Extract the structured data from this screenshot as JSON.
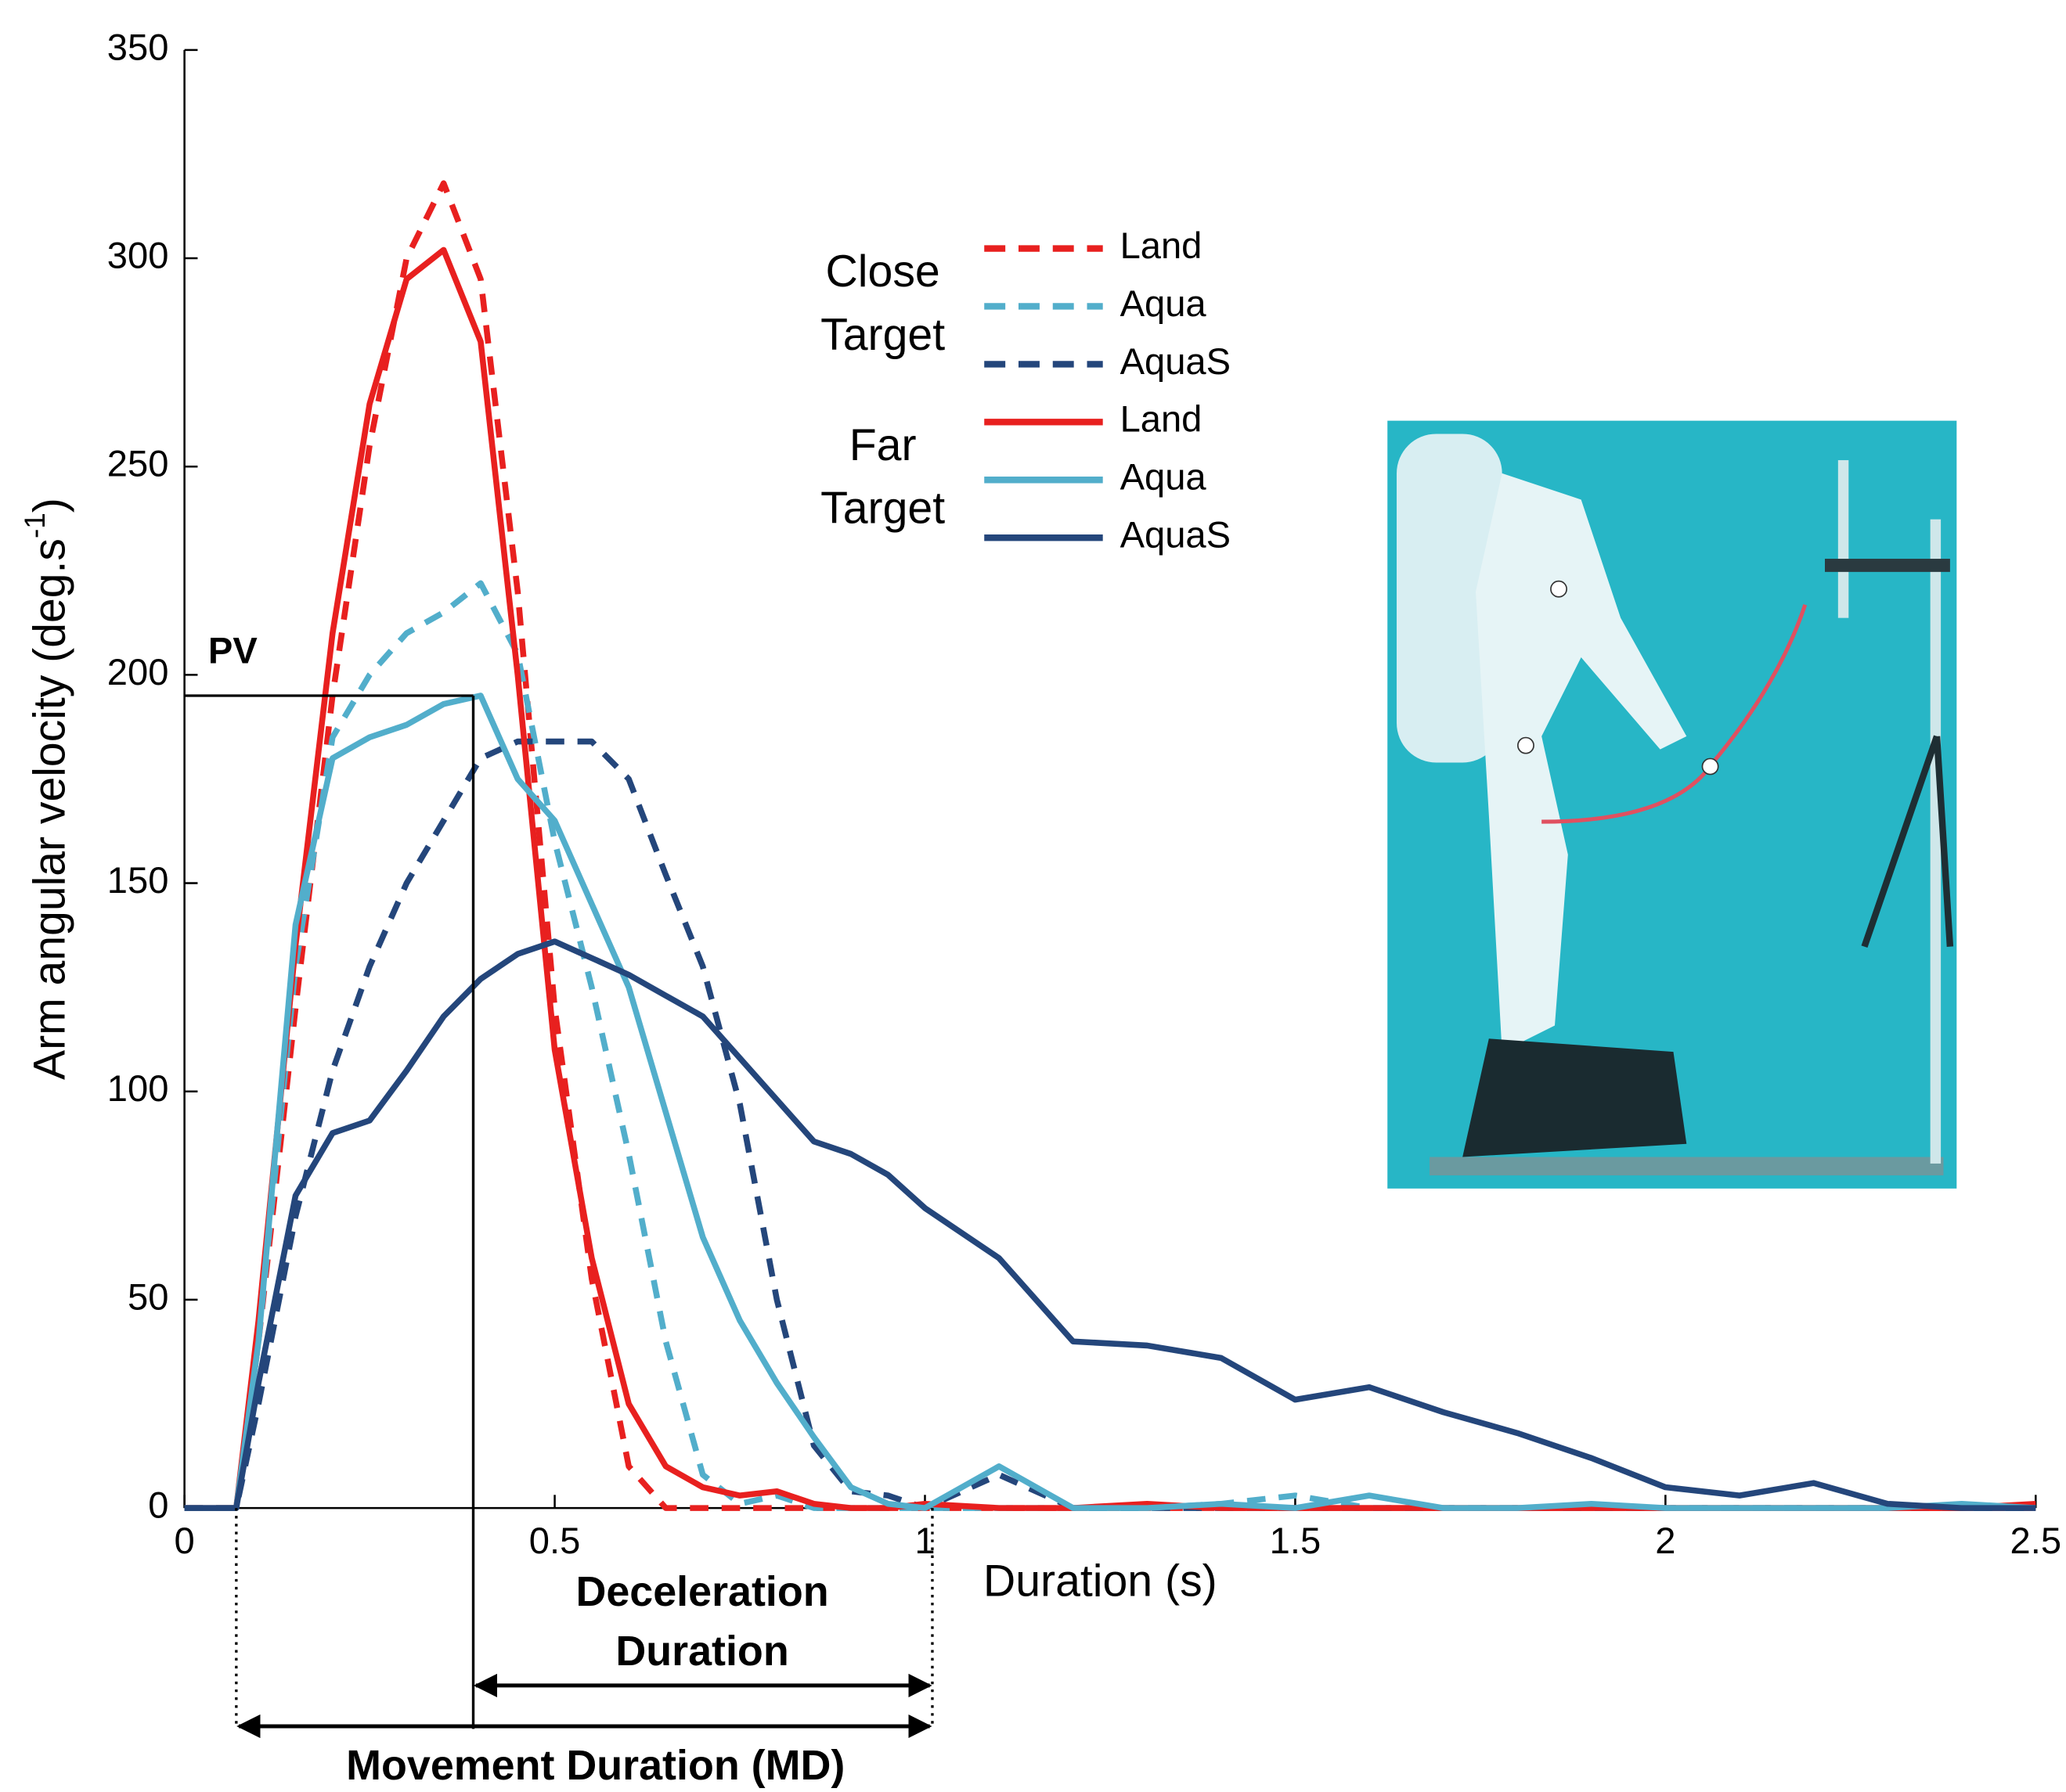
{
  "chart_data": {
    "type": "line",
    "xlabel": "Duration (s)",
    "ylabel": {
      "text": "Arm angular velocity (deg.s",
      "sup": "-1",
      "end": ")"
    },
    "xlim": [
      0,
      2.5
    ],
    "xticks": [
      0,
      0.5,
      1,
      1.5,
      2,
      2.5
    ],
    "ylim": [
      0,
      350
    ],
    "yticks": [
      0,
      50,
      100,
      150,
      200,
      250,
      300,
      350
    ],
    "legend_groups": [
      [
        "Close",
        "Target"
      ],
      [
        "Far",
        "Target"
      ]
    ],
    "x": [
      0,
      0.05,
      0.07,
      0.1,
      0.15,
      0.2,
      0.25,
      0.3,
      0.35,
      0.4,
      0.45,
      0.5,
      0.55,
      0.6,
      0.65,
      0.7,
      0.75,
      0.8,
      0.85,
      0.9,
      0.95,
      1.0,
      1.1,
      1.2,
      1.3,
      1.4,
      1.5,
      1.6,
      1.7,
      1.8,
      1.9,
      2.0,
      2.1,
      2.2,
      2.3,
      2.4,
      2.5
    ],
    "series": [
      {
        "name": "Land",
        "color": "#e8201f",
        "dashed": true,
        "values": [
          0,
          0,
          0,
          40,
          120,
          195,
          255,
          300,
          318,
          295,
          220,
          120,
          55,
          10,
          0,
          0,
          0,
          0,
          0,
          0,
          0,
          0,
          0,
          0,
          0,
          0,
          0,
          0,
          0,
          0,
          0,
          0,
          0,
          0,
          0,
          0,
          0
        ]
      },
      {
        "name": "Aqua",
        "color": "#52aecb",
        "dashed": true,
        "values": [
          0,
          0,
          0,
          40,
          130,
          185,
          200,
          210,
          215,
          222,
          205,
          160,
          125,
          85,
          40,
          8,
          1,
          3,
          0,
          0,
          0,
          0,
          0,
          0,
          0,
          1,
          3,
          0,
          0,
          0,
          0,
          0,
          0,
          0,
          0,
          0,
          0
        ]
      },
      {
        "name": "AquaS",
        "color": "#24467b",
        "dashed": true,
        "values": [
          0,
          0,
          0,
          25,
          70,
          105,
          130,
          150,
          165,
          180,
          184,
          184,
          184,
          175,
          152,
          130,
          97,
          50,
          15,
          4,
          3,
          0,
          8,
          0,
          0,
          0,
          0,
          0,
          0,
          0,
          0,
          0,
          0,
          0,
          0,
          0,
          0
        ]
      },
      {
        "name": "Land",
        "color": "#e8201f",
        "dashed": false,
        "values": [
          0,
          0,
          0,
          45,
          135,
          210,
          265,
          295,
          302,
          280,
          200,
          110,
          60,
          25,
          10,
          5,
          3,
          4,
          1,
          0,
          0,
          1,
          0,
          0,
          1,
          0,
          0,
          0,
          0,
          0,
          0,
          0,
          0,
          0,
          0,
          0,
          1
        ]
      },
      {
        "name": "Aqua",
        "color": "#52aecb",
        "dashed": false,
        "values": [
          0,
          0,
          0,
          40,
          140,
          180,
          185,
          188,
          193,
          195,
          175,
          165,
          145,
          125,
          95,
          65,
          45,
          30,
          17,
          5,
          1,
          0,
          10,
          0,
          0,
          1,
          0,
          3,
          0,
          0,
          1,
          0,
          0,
          0,
          0,
          1,
          0
        ]
      },
      {
        "name": "AquaS",
        "color": "#24467b",
        "dashed": false,
        "values": [
          0,
          0,
          0,
          30,
          75,
          90,
          93,
          105,
          118,
          127,
          133,
          136,
          132,
          128,
          123,
          118,
          108,
          98,
          88,
          85,
          80,
          72,
          60,
          40,
          39,
          36,
          26,
          29,
          23,
          18,
          12,
          5,
          3,
          6,
          1,
          0,
          0
        ]
      }
    ],
    "annotations": [
      {
        "text": [
          "PV"
        ],
        "x": [
          0,
          0.39
        ],
        "y": 195
      },
      {
        "text": [
          "Deceleration",
          "Duration"
        ],
        "x": [
          0.39,
          1.01
        ]
      },
      {
        "text": [
          "Movement Duration (MD)"
        ],
        "x": [
          0.07,
          1.01
        ]
      }
    ]
  }
}
